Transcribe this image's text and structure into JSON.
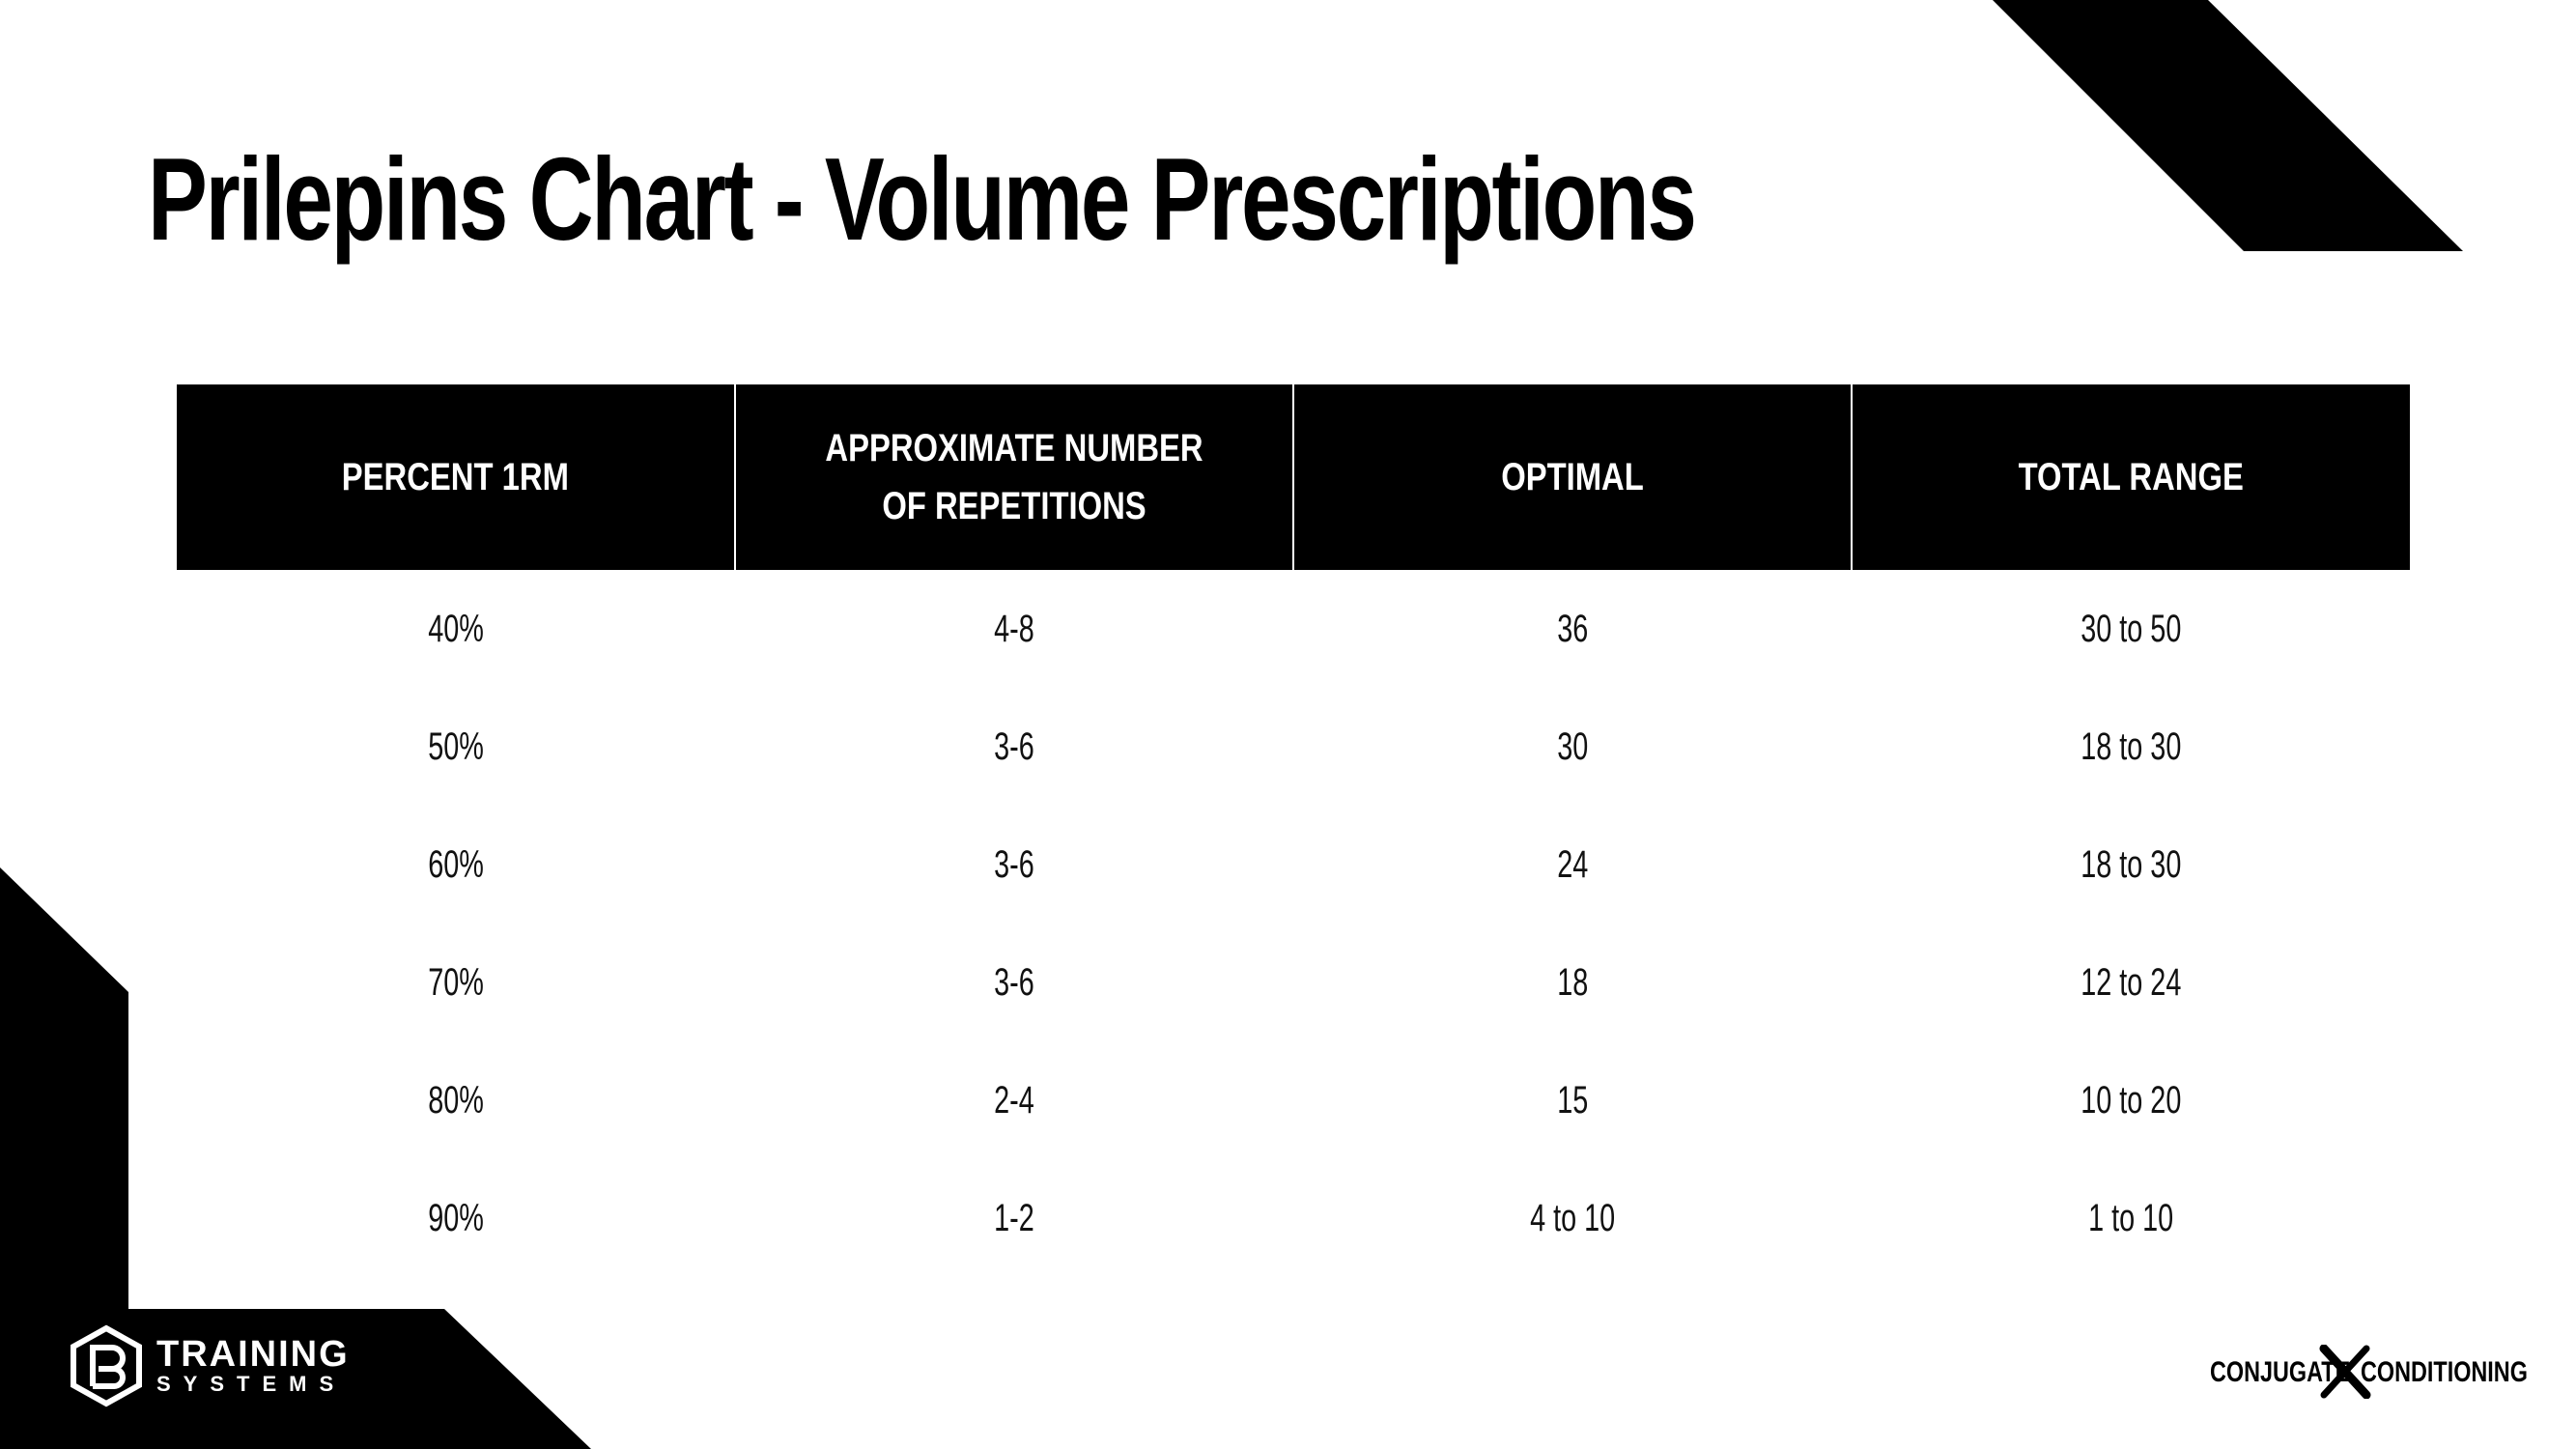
{
  "title": "Prilepins Chart - Volume Prescriptions",
  "table": {
    "headers": [
      "PERCENT 1RM",
      "APPROXIMATE NUMBER OF REPETITIONS",
      "OPTIMAL",
      "TOTAL RANGE"
    ],
    "rows": [
      [
        "40%",
        "4-8",
        "36",
        "30 to 50"
      ],
      [
        "50%",
        "3-6",
        "30",
        "18 to 30"
      ],
      [
        "60%",
        "3-6",
        "24",
        "18 to 30"
      ],
      [
        "70%",
        "3-6",
        "18",
        "12 to 24"
      ],
      [
        "80%",
        "2-4",
        "15",
        "10 to 20"
      ],
      [
        "90%",
        "1-2",
        "4 to 10",
        "1 to 10"
      ]
    ]
  },
  "logo_left": {
    "line1": "TRAINING",
    "line2": "SYSTEMS"
  },
  "logo_right": {
    "word1": "CONJUGATE",
    "word2": "CONDITIONING"
  },
  "colors": {
    "background": "#ffffff",
    "accent": "#000000",
    "header_text": "#ffffff"
  }
}
